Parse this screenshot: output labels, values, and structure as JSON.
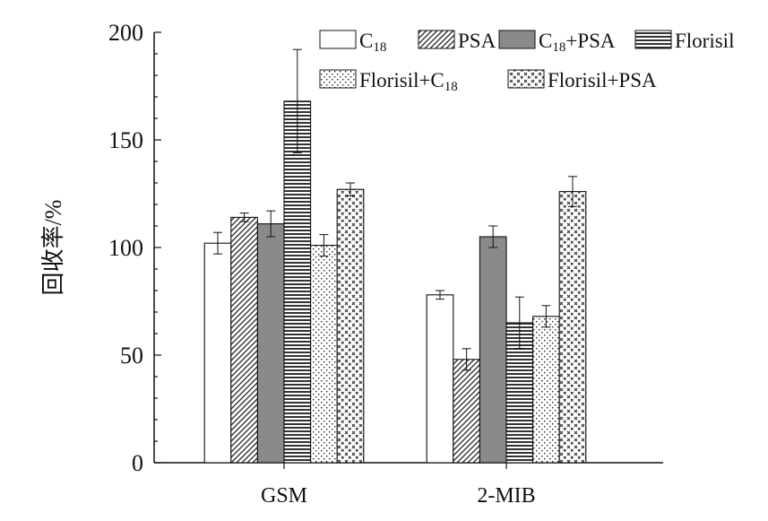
{
  "chart_data": {
    "type": "bar",
    "title": "",
    "xlabel": "",
    "ylabel": "回收率/%",
    "ylim": [
      0,
      200
    ],
    "yticks": [
      "0",
      "50",
      "100",
      "150",
      "200"
    ],
    "categories": [
      "GSM",
      "2-MIB"
    ],
    "grid": false,
    "legend_position": "top-right",
    "series": [
      {
        "name": "C18",
        "name_main": "C",
        "name_sub": "18",
        "name_rest": "",
        "pattern": "blank",
        "values": [
          102,
          78
        ],
        "errors": [
          5,
          2
        ]
      },
      {
        "name": "PSA",
        "name_main": "PSA",
        "name_sub": "",
        "name_rest": "",
        "pattern": "diagonal",
        "values": [
          114,
          48
        ],
        "errors": [
          2,
          5
        ]
      },
      {
        "name": "C18+PSA",
        "name_main": "C",
        "name_sub": "18",
        "name_rest": "+PSA",
        "pattern": "gray",
        "values": [
          111,
          105
        ],
        "errors": [
          6,
          5
        ]
      },
      {
        "name": "Florisil",
        "name_main": "Florisil",
        "name_sub": "",
        "name_rest": "",
        "pattern": "hlines",
        "values": [
          168,
          65
        ],
        "errors": [
          24,
          12
        ]
      },
      {
        "name": "Florisil+C18",
        "name_main": "Florisil+C",
        "name_sub": "18",
        "name_rest": "",
        "pattern": "dots",
        "values": [
          101,
          68
        ],
        "errors": [
          5,
          5
        ]
      },
      {
        "name": "Florisil+PSA",
        "name_main": "Florisil+PSA",
        "name_sub": "",
        "name_rest": "",
        "pattern": "cross",
        "values": [
          127,
          126
        ],
        "errors": [
          3,
          7
        ]
      }
    ]
  }
}
